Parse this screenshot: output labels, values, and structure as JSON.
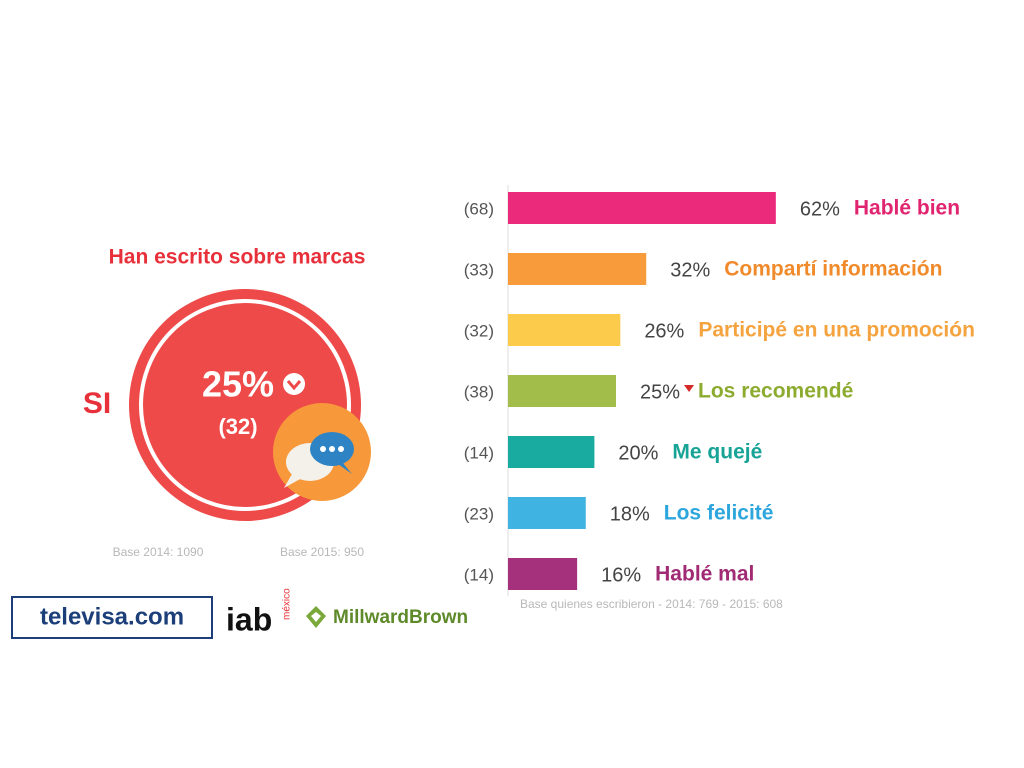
{
  "summary": {
    "title": "Han escrito sobre marcas",
    "label": "SI",
    "value": "25%",
    "previous": "(32)",
    "bases": [
      "Base 2014: 1090",
      "Base 2015: 950"
    ]
  },
  "logos": [
    "televisa.com",
    "iab",
    "méxico",
    "MillwardBrown"
  ],
  "chart_data": {
    "type": "bar",
    "orientation": "horizontal",
    "categories": [
      "Hablé bien",
      "Compartí información",
      "Participé en una promoción",
      "Los recomendé",
      "Me quejé",
      "Los felicité",
      "Hablé mal"
    ],
    "values": [
      62,
      32,
      26,
      25,
      20,
      18,
      16
    ],
    "value_labels": [
      "62%",
      "32%",
      "26%",
      "25%",
      "20%",
      "18%",
      "16%"
    ],
    "previous_labels": [
      "(68)",
      "(33)",
      "(32)",
      "(38)",
      "(14)",
      "(23)",
      "(14)"
    ],
    "colors": [
      "#ec2a7c",
      "#f89b3a",
      "#fdcb4b",
      "#a2bd4a",
      "#19ab9f",
      "#3fb3e2",
      "#a5307b"
    ],
    "label_colors": [
      "#e0246f",
      "#f08a2a",
      "#f4a33e",
      "#8cab2f",
      "#17a396",
      "#2ca6dc",
      "#a02a73"
    ],
    "trends": [
      null,
      null,
      null,
      "down",
      null,
      null,
      null
    ],
    "xlim": [
      0,
      100
    ],
    "note": "Base quienes escribieron - 2014: 769 - 2015: 608"
  }
}
